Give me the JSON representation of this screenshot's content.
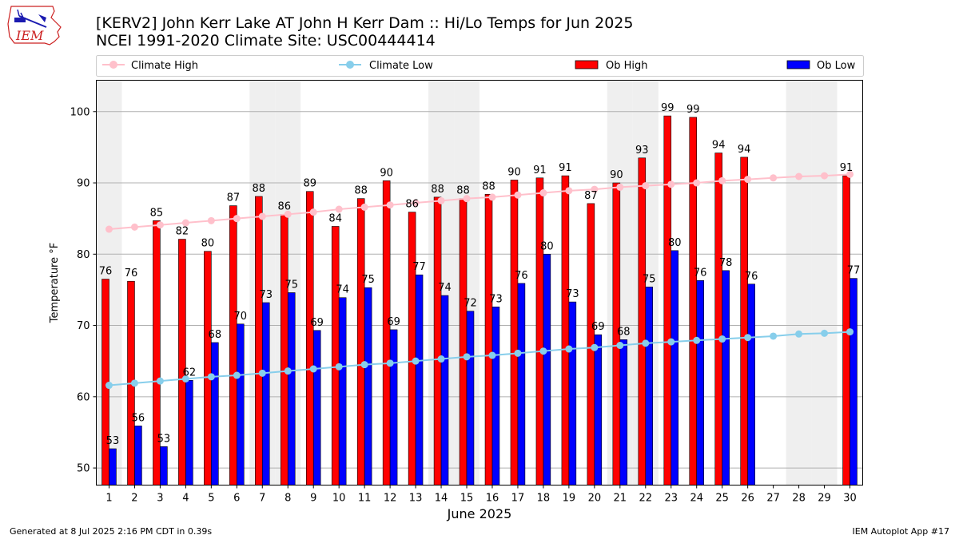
{
  "header": {
    "title_line1": "[KERV2] John Kerr Lake  AT John H Kerr Dam :: Hi/Lo Temps for Jun 2025",
    "title_line2": "NCEI 1991-2020 Climate Site: USC00444414",
    "logo_text": "IEM"
  },
  "footer": {
    "generated": "Generated at 8 Jul 2025 2:16 PM CDT in 0.39s",
    "app": "IEM Autoplot App #17"
  },
  "colors": {
    "ob_high": "#ff0000",
    "ob_low": "#0000ff",
    "climate_high": "#ffc0cb",
    "climate_low": "#87ceeb",
    "weekend_band": "#efefef",
    "grid": "#b0b0b0",
    "logo_red": "#cc2222",
    "logo_blue": "#1a1ab0"
  },
  "chart_data": {
    "type": "bar",
    "xlabel": "June 2025",
    "ylabel": "Temperature °F",
    "ylim": [
      47.6,
      104.4
    ],
    "yticks": [
      50,
      60,
      70,
      80,
      90,
      100
    ],
    "grid": "horizontal",
    "legend_position": "top",
    "categories": [
      "1",
      "2",
      "3",
      "4",
      "5",
      "6",
      "7",
      "8",
      "9",
      "10",
      "11",
      "12",
      "13",
      "14",
      "15",
      "16",
      "17",
      "18",
      "19",
      "20",
      "21",
      "22",
      "23",
      "24",
      "25",
      "26",
      "27",
      "28",
      "29",
      "30"
    ],
    "weekend_days": [
      1,
      7,
      8,
      14,
      15,
      21,
      22,
      28,
      29
    ],
    "series": [
      {
        "name": "Ob High",
        "kind": "bar",
        "values": [
          76.5,
          76.2,
          84.7,
          82.1,
          80.4,
          86.8,
          88.1,
          85.6,
          88.8,
          83.9,
          87.8,
          90.3,
          85.9,
          88.0,
          87.8,
          88.4,
          90.4,
          90.7,
          91.0,
          87.1,
          90.0,
          93.5,
          99.4,
          99.2,
          94.2,
          93.6,
          null,
          null,
          null,
          91.0
        ],
        "labels": [
          "76",
          "76",
          "85",
          "82",
          "80",
          "87",
          "88",
          "86",
          "89",
          "84",
          "88",
          "90",
          "86",
          "88",
          "88",
          "88",
          "90",
          "91",
          "91",
          "87",
          "90",
          "93",
          "99",
          "99",
          "94",
          "94",
          "",
          "",
          "",
          "91"
        ]
      },
      {
        "name": "Ob Low",
        "kind": "bar",
        "values": [
          52.7,
          55.9,
          53.0,
          62.3,
          67.6,
          70.2,
          73.2,
          74.6,
          69.3,
          73.9,
          75.3,
          69.4,
          77.1,
          74.2,
          72.0,
          72.6,
          75.9,
          80.0,
          73.3,
          68.7,
          68.0,
          75.4,
          80.5,
          76.3,
          77.7,
          75.8,
          null,
          null,
          null,
          76.6
        ],
        "labels": [
          "53",
          "56",
          "53",
          "62",
          "68",
          "70",
          "73",
          "75",
          "69",
          "74",
          "75",
          "69",
          "77",
          "74",
          "72",
          "73",
          "76",
          "80",
          "73",
          "69",
          "68",
          "75",
          "80",
          "76",
          "78",
          "76",
          "",
          "",
          "",
          "77"
        ]
      },
      {
        "name": "Climate High",
        "kind": "line",
        "values": [
          83.5,
          83.8,
          84.1,
          84.4,
          84.7,
          85.0,
          85.3,
          85.6,
          85.9,
          86.3,
          86.6,
          86.9,
          87.2,
          87.5,
          87.8,
          88.0,
          88.3,
          88.6,
          88.9,
          89.1,
          89.4,
          89.6,
          89.8,
          90.0,
          90.3,
          90.5,
          90.7,
          90.9,
          91.0,
          91.2
        ]
      },
      {
        "name": "Climate Low",
        "kind": "line",
        "values": [
          61.6,
          61.9,
          62.2,
          62.5,
          62.8,
          63.0,
          63.3,
          63.6,
          63.9,
          64.2,
          64.5,
          64.7,
          65.0,
          65.3,
          65.6,
          65.8,
          66.1,
          66.4,
          66.7,
          66.9,
          67.2,
          67.5,
          67.7,
          67.9,
          68.1,
          68.3,
          68.5,
          68.8,
          68.9,
          69.1
        ]
      }
    ],
    "legend": [
      "Climate High",
      "Climate Low",
      "Ob High",
      "Ob Low"
    ]
  }
}
